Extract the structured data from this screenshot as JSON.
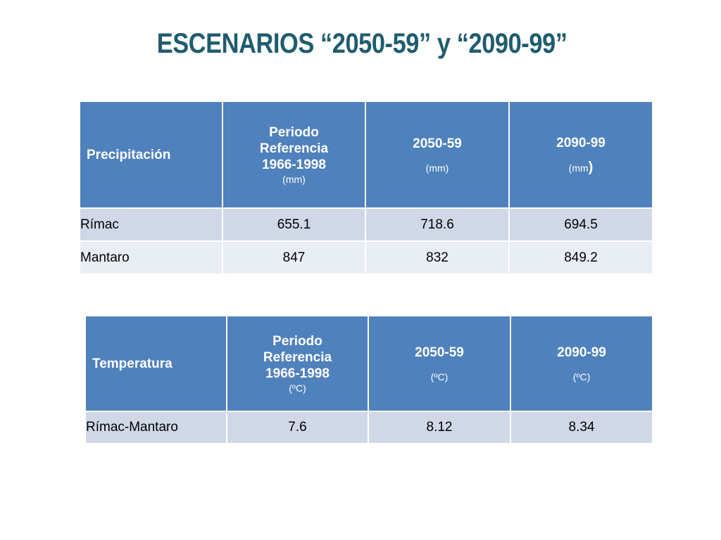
{
  "title": "ESCENARIOS “2050-59” y “2090-99”",
  "precipitation_table": {
    "header": {
      "label": "Precipitación",
      "ref_lines": [
        "Periodo",
        "Referencia",
        "1966-1998"
      ],
      "ref_unit": "(mm)",
      "col2_year": "2050-59",
      "col2_unit": "(mm)",
      "col3_year": "2090-99",
      "col3_unit_open": "(mm",
      "col3_unit_close": ")"
    },
    "rows": [
      {
        "label": "Rímac",
        "values": [
          "655.1",
          "718.6",
          "694.5"
        ]
      },
      {
        "label": "Mantaro",
        "values": [
          "847",
          "832",
          "849.2"
        ]
      }
    ]
  },
  "temperature_table": {
    "header": {
      "label": "Temperatura",
      "ref_lines": [
        "Periodo",
        "Referencia",
        "1966-1998"
      ],
      "ref_unit": "(ºC)",
      "col2_year": "2050-59",
      "col2_unit": "(ºC)",
      "col3_year": "2090-99",
      "col3_unit": "(ºC)"
    },
    "rows": [
      {
        "label": "Rímac-Mantaro",
        "values": [
          "7.6",
          "8.12",
          "8.34"
        ]
      }
    ]
  },
  "colors": {
    "title": "#1f5c6e",
    "header_bg": "#4f81bd",
    "row_band_a": "#d0d8e8",
    "row_band_b": "#e9edf4"
  }
}
